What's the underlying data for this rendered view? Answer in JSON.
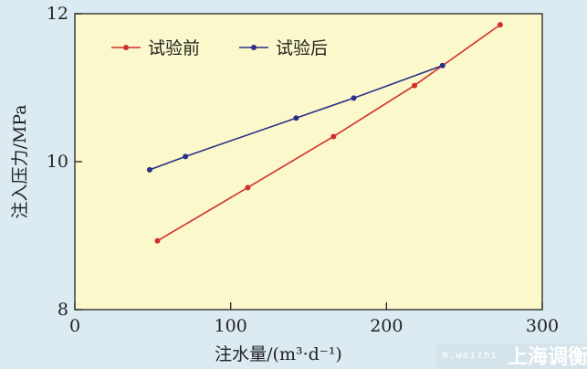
{
  "chart_data": {
    "type": "line",
    "title": "",
    "xlabel": "注水量/(m³·d⁻¹)",
    "ylabel": "注入压力/MPa",
    "xlim": [
      0,
      300
    ],
    "ylim": [
      8,
      12
    ],
    "xticks": [
      0,
      100,
      200,
      300
    ],
    "yticks": [
      8,
      10,
      12
    ],
    "grid": false,
    "legend_position": "top-left",
    "plot_background": "#fbf8cc",
    "series": [
      {
        "name": "试验前",
        "color": "#d0302c",
        "points": [
          {
            "x": 53,
            "y": 8.93
          },
          {
            "x": 111,
            "y": 9.65
          },
          {
            "x": 166,
            "y": 10.34
          },
          {
            "x": 218,
            "y": 11.03
          },
          {
            "x": 273,
            "y": 11.85
          }
        ]
      },
      {
        "name": "试验后",
        "color": "#2b2f85",
        "points": [
          {
            "x": 48,
            "y": 9.89
          },
          {
            "x": 71,
            "y": 10.07
          },
          {
            "x": 142,
            "y": 10.59
          },
          {
            "x": 179,
            "y": 10.86
          },
          {
            "x": 236,
            "y": 11.3
          }
        ]
      }
    ]
  },
  "watermark": {
    "url_text": "m.weizhi",
    "brand_text": "上海调",
    "brand_tail": "衡"
  }
}
